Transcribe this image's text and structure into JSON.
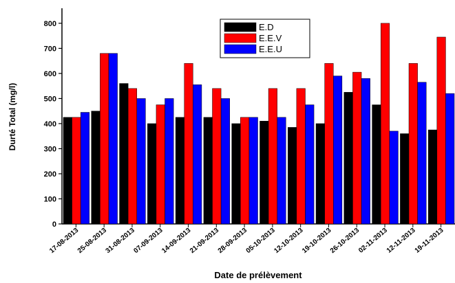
{
  "chart_data": {
    "type": "bar",
    "x_label": "Date de prélèvement",
    "y_label": "Durté Total (mg/l)",
    "categories": [
      "17-08-2013",
      "25-08-2013",
      "31-08-2013",
      "07-09-2013",
      "14-09-2013",
      "21-09-2013",
      "28-09-2013",
      "05-10-2013",
      "12-10-2013",
      "19-10-2013",
      "26-10-2013",
      "02-11-2013",
      "12-11-2013",
      "19-11-2013"
    ],
    "series": [
      {
        "name": "E.D",
        "color": "#000000",
        "values": [
          425,
          450,
          560,
          400,
          425,
          425,
          400,
          410,
          385,
          400,
          525,
          475,
          360,
          375
        ]
      },
      {
        "name": "E.E.V",
        "color": "#ff0000",
        "values": [
          425,
          680,
          540,
          475,
          640,
          540,
          425,
          540,
          540,
          640,
          605,
          800,
          640,
          745
        ]
      },
      {
        "name": "E.E.U",
        "color": "#0000ff",
        "values": [
          445,
          680,
          500,
          500,
          555,
          500,
          425,
          425,
          475,
          590,
          580,
          370,
          565,
          520
        ]
      }
    ],
    "ylim": [
      0,
      860
    ],
    "yticks": [
      0,
      100,
      200,
      300,
      400,
      500,
      600,
      700,
      800
    ],
    "legend": "top-center"
  }
}
